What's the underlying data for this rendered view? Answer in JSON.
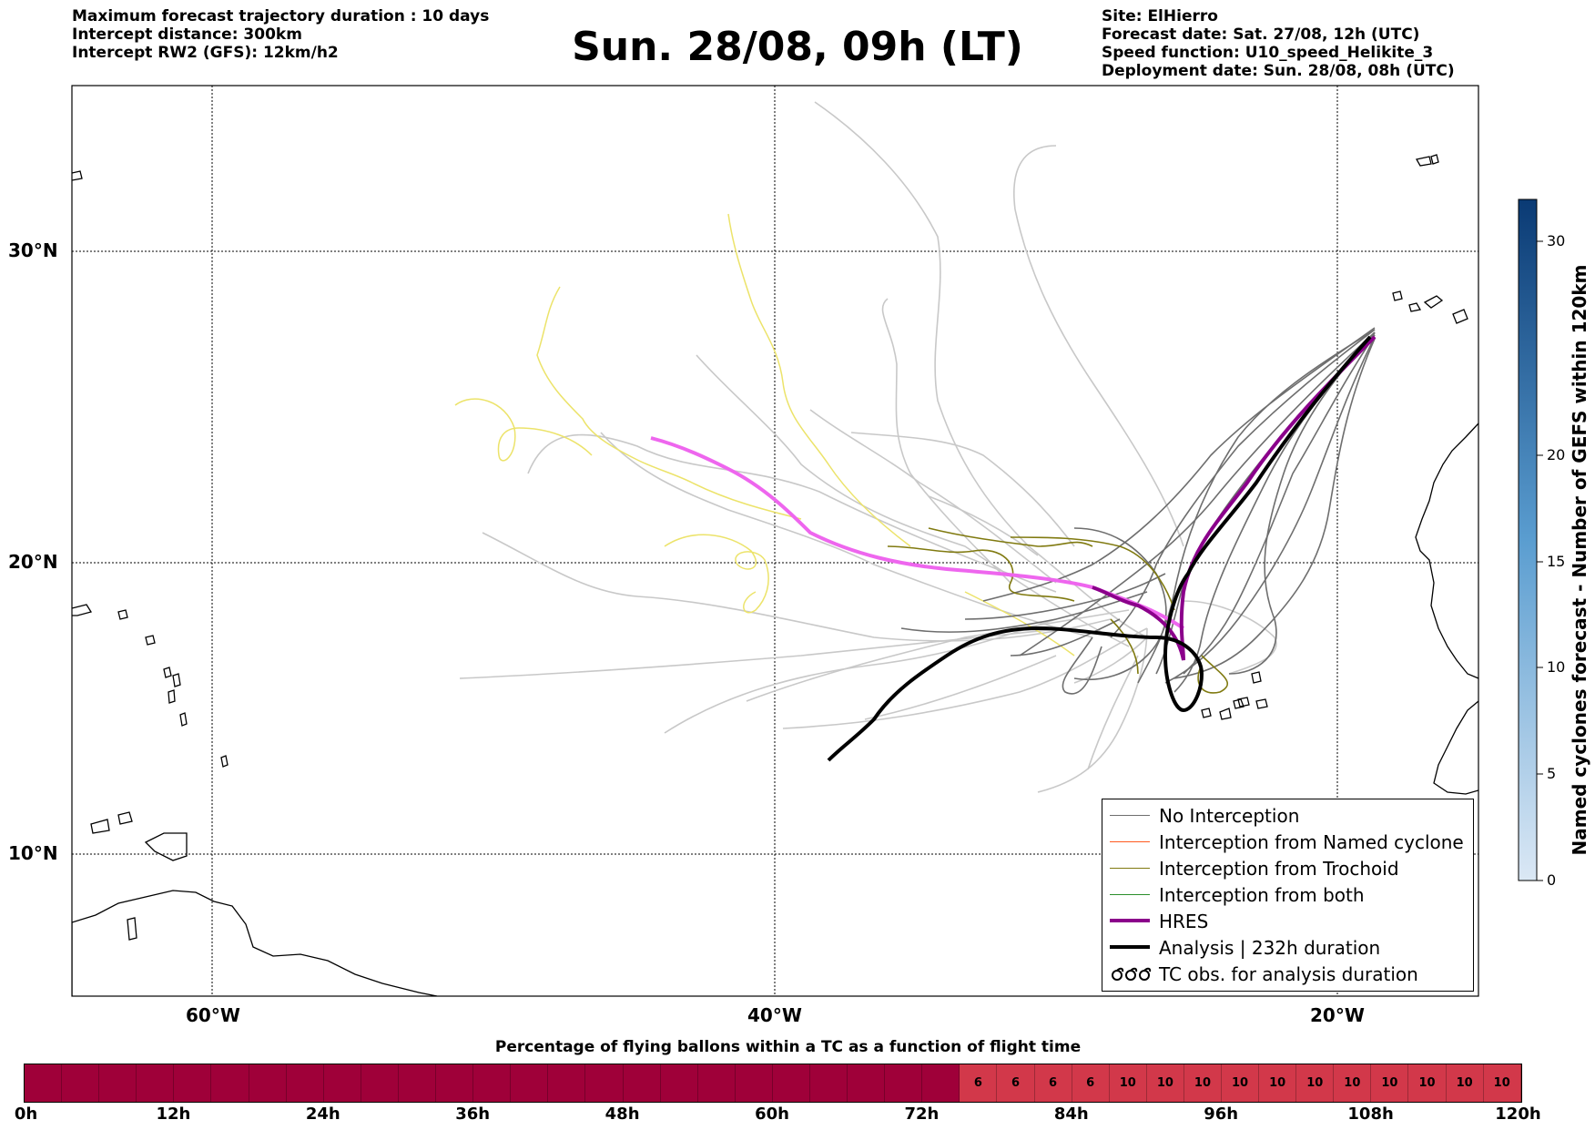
{
  "header": {
    "left": [
      "Maximum forecast trajectory duration : 10 days",
      "Intercept distance: 300km",
      "Intercept RW2 (GFS):  12km/h2"
    ],
    "title": "Sun. 28/08, 09h (LT)",
    "right": [
      "Site: ElHierro",
      "Forecast date: Sat. 27/08, 12h (UTC)",
      "Speed function: U10_speed_Helikite_3",
      "Deployment date: Sun. 28/08, 08h (UTC)"
    ]
  },
  "map": {
    "lat_labels": [
      "30°N",
      "20°N",
      "10°N"
    ],
    "lat_values": [
      30,
      20,
      10
    ],
    "lon_labels": [
      "60°W",
      "40°W",
      "20°W"
    ],
    "lon_values": [
      -60,
      -40,
      -20
    ],
    "colors": {
      "no_interception": "#6e6e6e",
      "ensemble_light": "#c8c8c8",
      "named_cyclone": "#ff5a1f",
      "trochoid": "#807a10",
      "trochoid_light": "#ece36a",
      "both": "#2a8f2a",
      "hres": "#8b008b",
      "hres_light": "#ee66ee",
      "analysis": "#000000"
    }
  },
  "colorbar": {
    "label": "Named cyclones forecast - Number of GEFS within 120km",
    "ticks": [
      "0",
      "5",
      "10",
      "15",
      "20",
      "30"
    ],
    "tick_values": [
      0,
      5,
      10,
      15,
      20,
      30
    ],
    "range": [
      0,
      32
    ],
    "color_low": "#dbe8f5",
    "color_high": "#0a3a74"
  },
  "legend": {
    "items": [
      {
        "label": "No Interception",
        "style": "line",
        "color": "#6e6e6e"
      },
      {
        "label": "Interception from Named cyclone",
        "style": "line",
        "color": "#ff5a1f"
      },
      {
        "label": "Interception from Trochoid",
        "style": "line",
        "color": "#807a10"
      },
      {
        "label": "Interception from both",
        "style": "line",
        "color": "#2a8f2a"
      },
      {
        "label": "HRES",
        "style": "thick",
        "color": "#8b008b"
      },
      {
        "label": "Analysis | 232h duration",
        "style": "thick",
        "color": "#000000"
      },
      {
        "label": "TC obs. for analysis duration",
        "style": "symbol",
        "color": "#000000"
      }
    ]
  },
  "time_bar": {
    "title": "Percentage of flying ballons within a TC as a function of flight time",
    "tick_labels": [
      "0h",
      "12h",
      "24h",
      "36h",
      "48h",
      "60h",
      "72h",
      "84h",
      "96h",
      "108h",
      "120h"
    ],
    "segments": [
      "",
      "",
      "",
      "",
      "",
      "",
      "",
      "",
      "",
      "",
      "",
      "",
      "",
      "",
      "",
      "",
      "",
      "",
      "",
      "",
      "",
      "",
      "",
      "",
      "",
      "6",
      "6",
      "6",
      "6",
      "10",
      "10",
      "10",
      "10",
      "10",
      "10",
      "10",
      "10",
      "10",
      "10",
      "10"
    ],
    "color_base": "#9f0039",
    "color_value": "#d2384a"
  }
}
